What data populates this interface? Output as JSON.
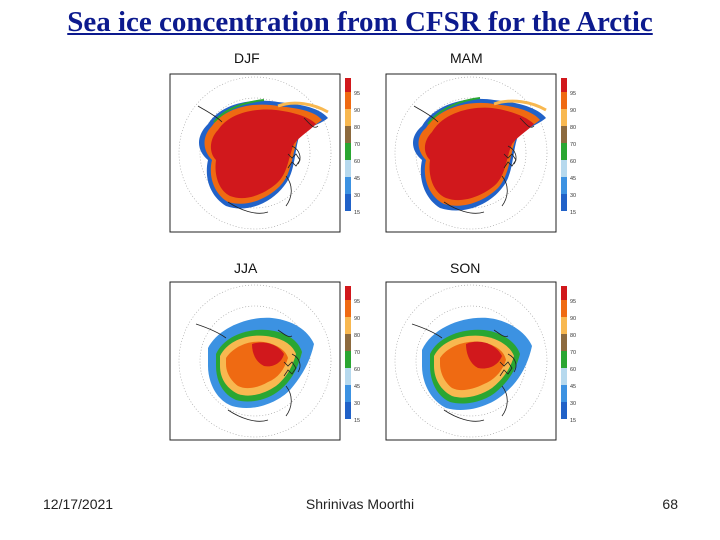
{
  "slide": {
    "title": "Sea ice concentration from CFSR for the Arctic"
  },
  "panels": [
    {
      "season": "DJF",
      "colorbar_labels": [
        "95",
        "90",
        "80",
        "70",
        "60",
        "45",
        "30",
        "15"
      ]
    },
    {
      "season": "MAM",
      "colorbar_labels": [
        "95",
        "90",
        "80",
        "70",
        "60",
        "45",
        "30",
        "15"
      ]
    },
    {
      "season": "JJA",
      "colorbar_labels": [
        "95",
        "90",
        "80",
        "70",
        "60",
        "45",
        "30",
        "15"
      ]
    },
    {
      "season": "SON",
      "colorbar_labels": [
        "95",
        "90",
        "80",
        "70",
        "60",
        "45",
        "30",
        "15"
      ]
    }
  ],
  "colorbar_colors": [
    "#d1181c",
    "#ef6a12",
    "#f8b850",
    "#8c6a3e",
    "#2aa632",
    "#b6d9ee",
    "#3c92e2",
    "#2162c8"
  ],
  "footer": {
    "date": "12/17/2021",
    "author": "Shrinivas Moorthi",
    "page": "68"
  }
}
